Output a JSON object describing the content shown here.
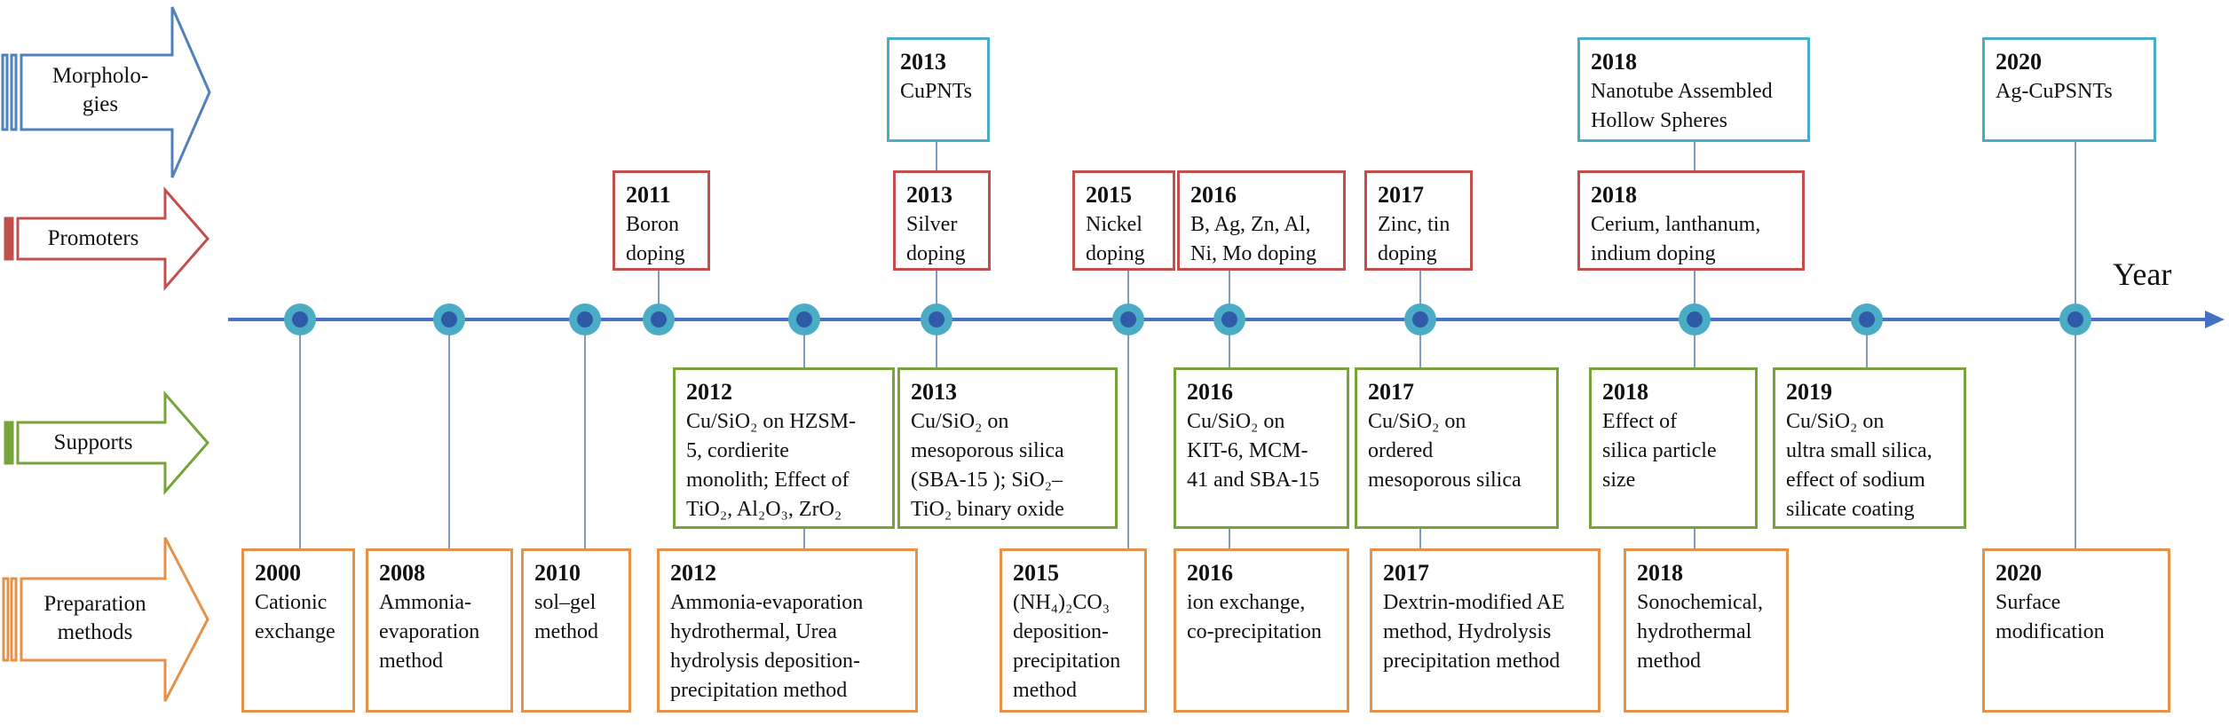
{
  "axis_label": "Year",
  "colors": {
    "axis": "#4472c4",
    "node_fill": "#4bacc6",
    "node_core": "#2e5aa8",
    "morphologies": "#4f81bd",
    "morphologies_box": "#4bacc6",
    "promoters": "#c0504d",
    "supports": "#77a33a",
    "preparation": "#e4924a"
  },
  "categories": {
    "morphologies": "Morpholo-\ngies",
    "promoters": "Promoters",
    "supports": "Supports",
    "preparation": "Preparation\nmethods"
  },
  "boxes": {
    "morphologies": [
      {
        "year": "2013",
        "text": "CuPNTs"
      },
      {
        "year": "2018",
        "text": "Nanotube Assembled\nHollow Spheres"
      },
      {
        "year": "2020",
        "text": "Ag-CuPSNTs"
      }
    ],
    "promoters": [
      {
        "year": "2011",
        "text": "Boron\ndoping"
      },
      {
        "year": "2013",
        "text": "Silver\ndoping"
      },
      {
        "year": "2015",
        "text": "Nickel\ndoping"
      },
      {
        "year": "2016",
        "text": "B, Ag, Zn, Al,\nNi, Mo doping"
      },
      {
        "year": "2017",
        "text": "Zinc, tin\ndoping"
      },
      {
        "year": "2018",
        "text": "Cerium, lanthanum,\nindium doping"
      }
    ],
    "supports": [
      {
        "year": "2012",
        "text": "Cu/SiO₂ on HZSM-\n5, cordierite\nmonolith; Effect of\nTiO₂, Al₂O₃, ZrO₂"
      },
      {
        "year": "2013",
        "text": "Cu/SiO₂ on\nmesoporous silica\n(SBA-15 ); SiO₂–\nTiO₂ binary oxide"
      },
      {
        "year": "2016",
        "text": "Cu/SiO₂ on\nKIT-6, MCM-\n41 and SBA-15"
      },
      {
        "year": "2017",
        "text": "Cu/SiO₂ on\nordered\nmesoporous silica"
      },
      {
        "year": "2018",
        "text": "Effect of\nsilica particle\nsize"
      },
      {
        "year": "2019",
        "text": "Cu/SiO₂ on\nultra small silica,\neffect of sodium\nsilicate coating"
      }
    ],
    "preparation": [
      {
        "year": "2000",
        "text": "Cationic\nexchange"
      },
      {
        "year": "2008",
        "text": "Ammonia-\nevaporation\nmethod"
      },
      {
        "year": "2010",
        "text": "sol–gel\nmethod"
      },
      {
        "year": "2012",
        "text": "Ammonia-evaporation\nhydrothermal, Urea\nhydrolysis deposition-\nprecipitation method"
      },
      {
        "year": "2015",
        "text": "(NH₄)₂CO₃\ndeposition-\nprecipitation\nmethod"
      },
      {
        "year": "2016",
        "text": "ion exchange,\nco-precipitation"
      },
      {
        "year": "2017",
        "text": "Dextrin-modified AE\nmethod, Hydrolysis\nprecipitation method"
      },
      {
        "year": "2018",
        "text": "Sonochemical,\nhydrothermal\nmethod"
      },
      {
        "year": "2020",
        "text": "Surface\nmodification"
      }
    ]
  }
}
